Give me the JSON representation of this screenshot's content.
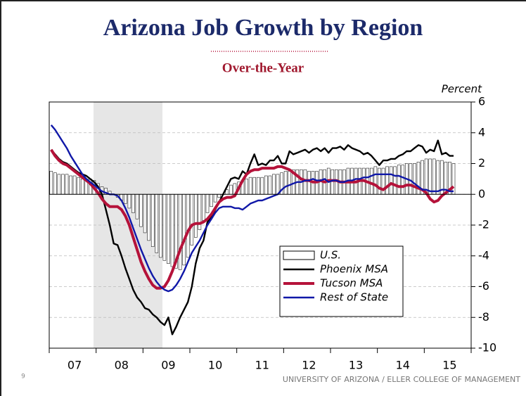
{
  "chart_data": {
    "type": "combo",
    "title": "Arizona Job Growth by Region",
    "subtitle": "Over-the-Year",
    "y_label": "Percent",
    "categories": [
      null,
      null,
      null,
      null,
      null,
      null,
      "07",
      null,
      null,
      null,
      null,
      null,
      null,
      null,
      null,
      null,
      null,
      null,
      "08",
      null,
      null,
      null,
      null,
      null,
      null,
      null,
      null,
      null,
      null,
      null,
      "09",
      null,
      null,
      null,
      null,
      null,
      null,
      null,
      null,
      null,
      null,
      null,
      "10",
      null,
      null,
      null,
      null,
      null,
      null,
      null,
      null,
      null,
      null,
      null,
      "11",
      null,
      null,
      null,
      null,
      null,
      null,
      null,
      null,
      null,
      null,
      null,
      "12",
      null,
      null,
      null,
      null,
      null,
      null,
      null,
      null,
      null,
      null,
      null,
      "13",
      null,
      null,
      null,
      null,
      null,
      null,
      null,
      null,
      null,
      null,
      null,
      "14",
      null,
      null,
      null,
      null,
      null,
      null,
      null,
      null,
      null,
      null,
      null,
      "15",
      null
    ],
    "ylim": [
      -10,
      6
    ],
    "yticks": [
      -10,
      -8,
      -6,
      -4,
      -2,
      0,
      2,
      4,
      6
    ],
    "grid": true,
    "series": [
      {
        "name": "U.S.",
        "type": "bar",
        "color": "#ffffff",
        "values": [
          1.5,
          1.4,
          1.3,
          1.3,
          1.3,
          1.2,
          1.2,
          1.1,
          1.0,
          1.0,
          1.0,
          0.9,
          0.7,
          0.5,
          0.4,
          0.2,
          0.0,
          -0.2,
          -0.4,
          -0.6,
          -0.9,
          -1.2,
          -1.6,
          -2.1,
          -2.5,
          -3.0,
          -3.4,
          -3.8,
          -4.1,
          -4.3,
          -4.5,
          -4.7,
          -4.8,
          -4.9,
          -4.6,
          -4.1,
          -3.3,
          -2.8,
          -2.3,
          -1.7,
          -1.2,
          -0.8,
          -0.5,
          -0.2,
          0.0,
          0.3,
          0.6,
          0.7,
          0.8,
          0.9,
          1.0,
          1.1,
          1.1,
          1.1,
          1.1,
          1.2,
          1.2,
          1.3,
          1.3,
          1.4,
          1.5,
          1.5,
          1.6,
          1.6,
          1.6,
          1.6,
          1.5,
          1.5,
          1.5,
          1.6,
          1.6,
          1.7,
          1.6,
          1.6,
          1.6,
          1.6,
          1.7,
          1.7,
          1.7,
          1.7,
          1.7,
          1.7,
          1.7,
          1.8,
          1.7,
          1.7,
          1.8,
          1.8,
          1.8,
          1.9,
          1.9,
          2.0,
          2.0,
          2.0,
          2.1,
          2.2,
          2.3,
          2.3,
          2.3,
          2.2,
          2.2,
          2.1,
          2.1,
          2.0
        ]
      },
      {
        "name": "Phoenix MSA",
        "type": "line",
        "color": "#000000",
        "values": [
          2.9,
          2.6,
          2.3,
          2.1,
          2.0,
          1.8,
          1.6,
          1.4,
          1.3,
          1.2,
          1.0,
          0.8,
          0.5,
          0.0,
          -1.0,
          -2.0,
          -3.2,
          -3.3,
          -4.0,
          -4.8,
          -5.5,
          -6.2,
          -6.7,
          -7.0,
          -7.4,
          -7.5,
          -7.8,
          -8.0,
          -8.3,
          -8.5,
          -8.0,
          -9.1,
          -8.6,
          -8.0,
          -7.5,
          -7.0,
          -6.0,
          -4.5,
          -3.5,
          -3.0,
          -1.8,
          -1.5,
          -1.0,
          -0.5,
          0.0,
          0.5,
          1.0,
          1.1,
          1.0,
          1.5,
          1.3,
          2.0,
          2.6,
          1.9,
          2.0,
          1.9,
          2.2,
          2.2,
          2.5,
          2.0,
          2.0,
          2.8,
          2.6,
          2.7,
          2.8,
          2.9,
          2.7,
          2.9,
          3.0,
          2.8,
          3.0,
          2.7,
          3.0,
          3.0,
          3.1,
          2.9,
          3.2,
          3.0,
          2.9,
          2.8,
          2.6,
          2.7,
          2.5,
          2.2,
          1.9,
          2.2,
          2.2,
          2.3,
          2.3,
          2.5,
          2.6,
          2.8,
          2.8,
          3.0,
          3.2,
          3.1,
          2.7,
          2.9,
          2.8,
          3.5,
          2.6,
          2.7,
          2.5,
          2.5
        ]
      },
      {
        "name": "Tucson MSA",
        "type": "line",
        "color": "#b5123a",
        "values": [
          2.9,
          2.5,
          2.2,
          2.0,
          1.9,
          1.7,
          1.5,
          1.3,
          1.1,
          0.9,
          0.7,
          0.4,
          0.1,
          -0.3,
          -0.6,
          -0.8,
          -0.8,
          -0.8,
          -1.0,
          -1.4,
          -2.0,
          -2.8,
          -3.6,
          -4.4,
          -5.0,
          -5.5,
          -5.9,
          -6.1,
          -6.1,
          -6.0,
          -5.6,
          -5.0,
          -4.3,
          -3.6,
          -3.0,
          -2.4,
          -2.0,
          -1.9,
          -1.9,
          -1.8,
          -1.6,
          -1.3,
          -0.9,
          -0.5,
          -0.3,
          -0.2,
          -0.2,
          -0.1,
          0.4,
          0.9,
          1.3,
          1.5,
          1.6,
          1.6,
          1.7,
          1.7,
          1.7,
          1.7,
          1.8,
          1.8,
          1.7,
          1.6,
          1.4,
          1.2,
          1.0,
          0.9,
          0.9,
          0.8,
          0.8,
          0.9,
          0.8,
          0.9,
          0.9,
          0.9,
          0.8,
          0.8,
          0.8,
          0.8,
          0.8,
          0.9,
          0.9,
          0.8,
          0.7,
          0.6,
          0.4,
          0.3,
          0.5,
          0.7,
          0.6,
          0.5,
          0.5,
          0.6,
          0.6,
          0.5,
          0.4,
          0.3,
          0.1,
          -0.3,
          -0.5,
          -0.4,
          -0.1,
          0.1,
          0.3,
          0.5
        ]
      },
      {
        "name": "Rest of State",
        "type": "line",
        "color": "#1018a8",
        "values": [
          4.5,
          4.2,
          3.8,
          3.4,
          3.0,
          2.5,
          2.1,
          1.7,
          1.3,
          1.0,
          0.8,
          0.6,
          0.4,
          0.2,
          0.1,
          0.0,
          0.0,
          -0.1,
          -0.4,
          -0.9,
          -1.5,
          -2.2,
          -2.9,
          -3.6,
          -4.2,
          -4.8,
          -5.3,
          -5.7,
          -6.0,
          -6.2,
          -6.3,
          -6.2,
          -5.9,
          -5.5,
          -5.0,
          -4.4,
          -3.8,
          -3.4,
          -3.0,
          -2.5,
          -2.0,
          -1.6,
          -1.2,
          -0.9,
          -0.8,
          -0.8,
          -0.8,
          -0.9,
          -0.9,
          -1.0,
          -0.8,
          -0.6,
          -0.5,
          -0.4,
          -0.4,
          -0.3,
          -0.2,
          -0.1,
          0.0,
          0.3,
          0.5,
          0.6,
          0.7,
          0.8,
          0.8,
          0.9,
          0.9,
          1.0,
          0.9,
          0.9,
          1.0,
          0.8,
          0.9,
          0.9,
          0.8,
          0.8,
          0.9,
          0.9,
          1.0,
          1.0,
          1.1,
          1.1,
          1.2,
          1.3,
          1.3,
          1.3,
          1.3,
          1.3,
          1.2,
          1.2,
          1.1,
          1.0,
          0.9,
          0.7,
          0.5,
          0.3,
          0.3,
          0.2,
          0.2,
          0.2,
          0.3,
          0.3,
          0.2,
          0.2
        ]
      }
    ]
  },
  "page_number": "9",
  "footer": "UNIVERSITY OF ARIZONA / ELLER COLLEGE OF MANAGEMENT"
}
